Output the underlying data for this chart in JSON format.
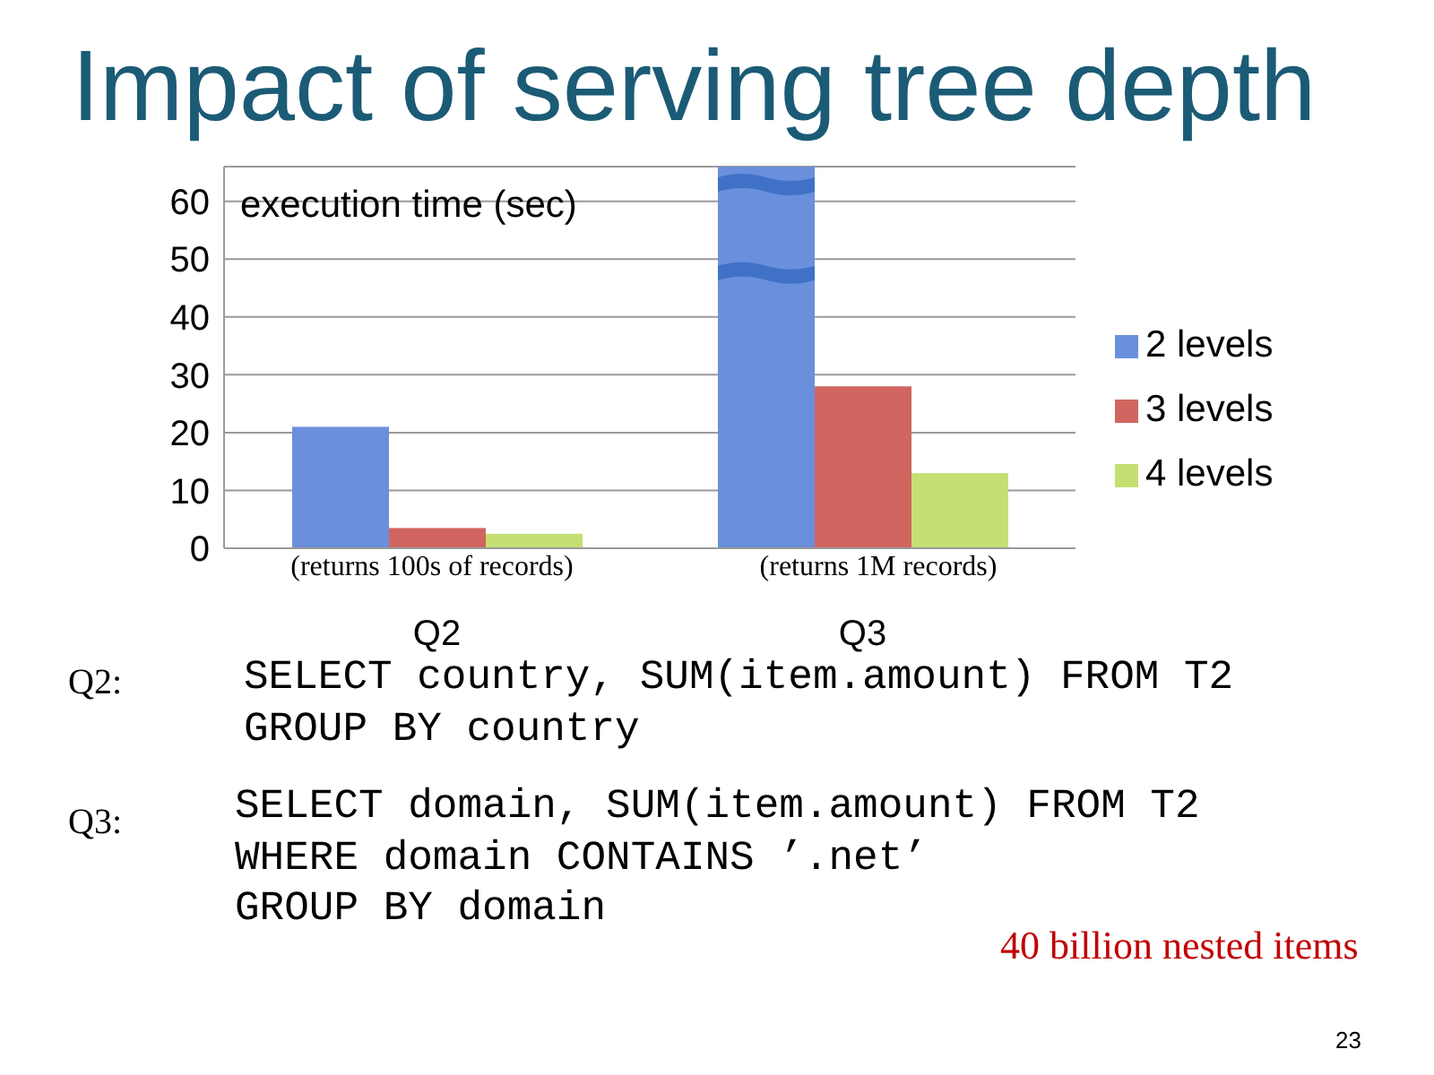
{
  "chart_data": {
    "type": "bar",
    "title": "Impact of serving tree depth",
    "ylabel": "execution time (sec)",
    "categories": [
      "Q2",
      "Q3"
    ],
    "series": [
      {
        "name": "2 levels",
        "color": "#6a8fdc",
        "values": [
          21,
          66
        ]
      },
      {
        "name": "3 levels",
        "color": "#d0665f",
        "values": [
          3.5,
          28
        ]
      },
      {
        "name": "4 levels",
        "color": "#c6df72",
        "values": [
          2.5,
          13
        ]
      }
    ],
    "ylim": [
      0,
      66
    ],
    "yticks": [
      0,
      10,
      20,
      30,
      40,
      50,
      60
    ],
    "grid": "y",
    "legend": "right",
    "annotations": [
      "(returns 100s of records)",
      "(returns 1M records)",
      "Q2:",
      "SELECT country, SUM(item.amount) FROM T2",
      "GROUP BY country",
      "Q3:",
      "SELECT domain, SUM(item.amount) FROM T2",
      "WHERE domain CONTAINS ’.net’",
      "GROUP BY domain",
      "40 billion nested items",
      "23"
    ]
  }
}
